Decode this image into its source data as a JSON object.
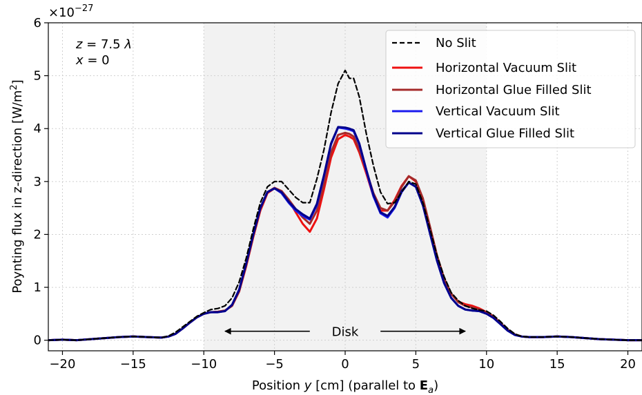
{
  "chart_data": {
    "type": "line",
    "xlabel": {
      "prefix": "Position ",
      "var": "y",
      "mid": " [cm] (parallel to ",
      "bold": "E",
      "sub": "a",
      "suffix": ")"
    },
    "ylabel": {
      "text": "Poynting flux in z-direction [W/m",
      "sup": "2",
      "end": "]"
    },
    "y_offset_label": {
      "base": "×10",
      "exp": "−27"
    },
    "xlim": [
      -21,
      21
    ],
    "ylim": [
      -0.2,
      6
    ],
    "x_ticks": [
      -20,
      -15,
      -10,
      -5,
      0,
      5,
      10,
      15,
      20
    ],
    "x_tick_labels": [
      "−20",
      "−15",
      "−10",
      "−5",
      "0",
      "5",
      "10",
      "15",
      "20"
    ],
    "y_ticks": [
      0,
      1,
      2,
      3,
      4,
      5,
      6
    ],
    "y_tick_labels": [
      "0",
      "1",
      "2",
      "3",
      "4",
      "5",
      "6"
    ],
    "grid": true,
    "legend_position": "top-right",
    "shaded_region": {
      "x": [
        -10,
        10
      ],
      "color": "#f2f2f2"
    },
    "annotation_conditions": {
      "line1": {
        "lhs": "z",
        "rhs": " = 7.5 ",
        "unit": "λ"
      },
      "line2": {
        "lhs": "x",
        "rhs": " = 0"
      }
    },
    "disk_annotation": {
      "label": "Disk",
      "x_from": -2.5,
      "x_to": -8.5,
      "x_from2": 2.5,
      "x_to2": 8.5,
      "y": 0.17
    },
    "series": [
      {
        "name": "No Slit",
        "color": "#000000",
        "dash": "7,4",
        "width": 2.2,
        "x": [
          -21,
          -20,
          -19,
          -18,
          -17,
          -16,
          -15,
          -14,
          -13,
          -12.5,
          -12,
          -11.5,
          -11,
          -10.5,
          -10,
          -9.5,
          -9,
          -8.5,
          -8,
          -7.5,
          -7,
          -6.5,
          -6,
          -5.5,
          -5,
          -4.5,
          -4,
          -3.5,
          -3,
          -2.5,
          -2,
          -1.5,
          -1,
          -0.5,
          0,
          0.3,
          0.6,
          1,
          1.5,
          2,
          2.5,
          3,
          3.5,
          4,
          4.5,
          5,
          5.5,
          6,
          6.5,
          7,
          7.5,
          8,
          8.5,
          9,
          9.5,
          10,
          10.5,
          11,
          11.5,
          12,
          12.5,
          13,
          14,
          15,
          16,
          17,
          18,
          19,
          20,
          21
        ],
        "y": [
          0,
          0.01,
          0,
          0.02,
          0.04,
          0.06,
          0.07,
          0.06,
          0.05,
          0.08,
          0.15,
          0.25,
          0.35,
          0.45,
          0.52,
          0.58,
          0.6,
          0.65,
          0.8,
          1.1,
          1.55,
          2.1,
          2.6,
          2.9,
          3.0,
          3.0,
          2.85,
          2.7,
          2.6,
          2.6,
          3.05,
          3.6,
          4.3,
          4.85,
          5.1,
          4.95,
          4.95,
          4.6,
          3.9,
          3.3,
          2.8,
          2.58,
          2.6,
          2.8,
          3.0,
          2.95,
          2.6,
          2.1,
          1.6,
          1.2,
          0.9,
          0.75,
          0.65,
          0.6,
          0.57,
          0.55,
          0.47,
          0.35,
          0.22,
          0.12,
          0.07,
          0.06,
          0.06,
          0.07,
          0.06,
          0.04,
          0.02,
          0.01,
          0,
          0
        ]
      },
      {
        "name": "Horizontal Vacuum Slit",
        "color": "#ee1111",
        "dash": "",
        "width": 3,
        "x": [
          -21,
          -20,
          -19,
          -18,
          -17,
          -16,
          -15,
          -14,
          -13,
          -12.5,
          -12,
          -11.5,
          -11,
          -10.5,
          -10,
          -9.5,
          -9,
          -8.5,
          -8,
          -7.5,
          -7,
          -6.5,
          -6,
          -5.5,
          -5,
          -4.5,
          -4,
          -3.5,
          -3,
          -2.5,
          -2,
          -1.5,
          -1,
          -0.5,
          0,
          0.3,
          0.6,
          1,
          1.5,
          2,
          2.5,
          3,
          3.5,
          4,
          4.5,
          5,
          5.5,
          6,
          6.5,
          7,
          7.5,
          8,
          8.5,
          9,
          9.5,
          10,
          10.5,
          11,
          11.5,
          12,
          12.5,
          13,
          14,
          15,
          16,
          17,
          18,
          19,
          20,
          21
        ],
        "y": [
          0,
          0.01,
          0,
          0.02,
          0.04,
          0.06,
          0.07,
          0.06,
          0.05,
          0.07,
          0.12,
          0.22,
          0.33,
          0.43,
          0.5,
          0.53,
          0.54,
          0.56,
          0.65,
          0.92,
          1.4,
          1.95,
          2.45,
          2.78,
          2.87,
          2.82,
          2.65,
          2.42,
          2.2,
          2.05,
          2.3,
          2.85,
          3.45,
          3.8,
          3.88,
          3.85,
          3.8,
          3.55,
          3.15,
          2.72,
          2.45,
          2.45,
          2.65,
          2.92,
          3.1,
          3.0,
          2.62,
          2.1,
          1.58,
          1.15,
          0.88,
          0.73,
          0.68,
          0.65,
          0.6,
          0.53,
          0.45,
          0.32,
          0.2,
          0.11,
          0.07,
          0.06,
          0.06,
          0.07,
          0.06,
          0.04,
          0.02,
          0.01,
          0,
          0
        ]
      },
      {
        "name": "Horizontal Glue Filled Slit",
        "color": "#a52a2a",
        "dash": "",
        "width": 3,
        "x": [
          -21,
          -20,
          -19,
          -18,
          -17,
          -16,
          -15,
          -14,
          -13,
          -12.5,
          -12,
          -11.5,
          -11,
          -10.5,
          -10,
          -9.5,
          -9,
          -8.5,
          -8,
          -7.5,
          -7,
          -6.5,
          -6,
          -5.5,
          -5,
          -4.5,
          -4,
          -3.5,
          -3,
          -2.5,
          -2,
          -1.5,
          -1,
          -0.5,
          0,
          0.3,
          0.6,
          1,
          1.5,
          2,
          2.5,
          3,
          3.5,
          4,
          4.5,
          5,
          5.5,
          6,
          6.5,
          7,
          7.5,
          8,
          8.5,
          9,
          9.5,
          10,
          10.5,
          11,
          11.5,
          12,
          12.5,
          13,
          14,
          15,
          16,
          17,
          18,
          19,
          20,
          21
        ],
        "y": [
          0,
          0.01,
          0,
          0.02,
          0.04,
          0.06,
          0.07,
          0.06,
          0.05,
          0.07,
          0.12,
          0.22,
          0.33,
          0.43,
          0.5,
          0.53,
          0.54,
          0.56,
          0.65,
          0.93,
          1.42,
          1.97,
          2.48,
          2.8,
          2.88,
          2.82,
          2.66,
          2.48,
          2.32,
          2.2,
          2.45,
          2.95,
          3.55,
          3.88,
          3.92,
          3.9,
          3.85,
          3.6,
          3.2,
          2.78,
          2.5,
          2.45,
          2.62,
          2.9,
          3.1,
          3.02,
          2.68,
          2.15,
          1.6,
          1.17,
          0.88,
          0.72,
          0.65,
          0.62,
          0.58,
          0.52,
          0.44,
          0.32,
          0.2,
          0.11,
          0.07,
          0.06,
          0.06,
          0.07,
          0.06,
          0.04,
          0.02,
          0.01,
          0,
          0
        ]
      },
      {
        "name": "Vertical Vacuum Slit",
        "color": "#1a1aee",
        "dash": "",
        "width": 3,
        "x": [
          -21,
          -20,
          -19,
          -18,
          -17,
          -16,
          -15,
          -14,
          -13,
          -12.5,
          -12,
          -11.5,
          -11,
          -10.5,
          -10,
          -9.5,
          -9,
          -8.5,
          -8,
          -7.5,
          -7,
          -6.5,
          -6,
          -5.5,
          -5,
          -4.5,
          -4,
          -3.5,
          -3,
          -2.5,
          -2,
          -1.5,
          -1,
          -0.5,
          0,
          0.3,
          0.6,
          1,
          1.5,
          2,
          2.5,
          3,
          3.5,
          4,
          4.5,
          5,
          5.5,
          6,
          6.5,
          7,
          7.5,
          8,
          8.5,
          9,
          9.5,
          10,
          10.5,
          11,
          11.5,
          12,
          12.5,
          13,
          14,
          15,
          16,
          17,
          18,
          19,
          20,
          21
        ],
        "y": [
          0,
          0.01,
          0,
          0.02,
          0.04,
          0.06,
          0.07,
          0.06,
          0.05,
          0.07,
          0.12,
          0.22,
          0.33,
          0.43,
          0.5,
          0.53,
          0.53,
          0.55,
          0.67,
          0.96,
          1.45,
          2.0,
          2.5,
          2.8,
          2.87,
          2.78,
          2.6,
          2.45,
          2.35,
          2.28,
          2.55,
          3.1,
          3.7,
          4.02,
          4.0,
          3.98,
          3.95,
          3.7,
          3.2,
          2.72,
          2.4,
          2.32,
          2.5,
          2.8,
          2.98,
          2.9,
          2.55,
          2.02,
          1.5,
          1.08,
          0.8,
          0.65,
          0.58,
          0.56,
          0.55,
          0.5,
          0.42,
          0.3,
          0.18,
          0.1,
          0.07,
          0.06,
          0.06,
          0.07,
          0.06,
          0.04,
          0.02,
          0.01,
          0,
          0
        ]
      },
      {
        "name": "Vertical Glue Filled Slit",
        "color": "#00008b",
        "dash": "",
        "width": 3,
        "x": [
          -21,
          -20,
          -19,
          -18,
          -17,
          -16,
          -15,
          -14,
          -13,
          -12.5,
          -12,
          -11.5,
          -11,
          -10.5,
          -10,
          -9.5,
          -9,
          -8.5,
          -8,
          -7.5,
          -7,
          -6.5,
          -6,
          -5.5,
          -5,
          -4.5,
          -4,
          -3.5,
          -3,
          -2.5,
          -2,
          -1.5,
          -1,
          -0.5,
          0,
          0.3,
          0.6,
          1,
          1.5,
          2,
          2.5,
          3,
          3.5,
          4,
          4.5,
          5,
          5.5,
          6,
          6.5,
          7,
          7.5,
          8,
          8.5,
          9,
          9.5,
          10,
          10.5,
          11,
          11.5,
          12,
          12.5,
          13,
          14,
          15,
          16,
          17,
          18,
          19,
          20,
          21
        ],
        "y": [
          0,
          0.01,
          0,
          0.02,
          0.04,
          0.06,
          0.07,
          0.06,
          0.05,
          0.07,
          0.12,
          0.22,
          0.33,
          0.43,
          0.5,
          0.53,
          0.53,
          0.55,
          0.67,
          0.95,
          1.45,
          2.0,
          2.5,
          2.8,
          2.87,
          2.8,
          2.62,
          2.48,
          2.38,
          2.3,
          2.58,
          3.12,
          3.72,
          4.03,
          4.02,
          4.0,
          3.97,
          3.72,
          3.22,
          2.75,
          2.42,
          2.35,
          2.52,
          2.82,
          2.98,
          2.9,
          2.55,
          2.02,
          1.5,
          1.08,
          0.8,
          0.65,
          0.58,
          0.56,
          0.55,
          0.5,
          0.42,
          0.3,
          0.18,
          0.1,
          0.07,
          0.06,
          0.06,
          0.07,
          0.06,
          0.04,
          0.02,
          0.01,
          0,
          0
        ]
      }
    ]
  }
}
